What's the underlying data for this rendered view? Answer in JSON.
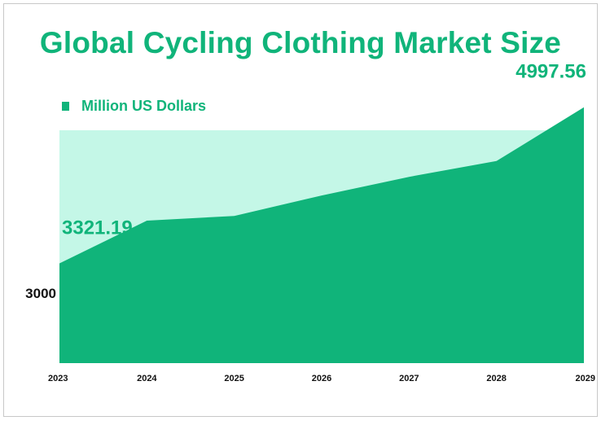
{
  "chart_data": {
    "type": "area",
    "title": "Global Cycling Clothing Market Size",
    "series": [
      {
        "name": "Million US Dollars",
        "values": [
          3321.19,
          3780,
          3830,
          4050,
          4250,
          4420,
          4997.56
        ]
      }
    ],
    "categories": [
      "2023",
      "2024",
      "2025",
      "2026",
      "2027",
      "2028",
      "2029"
    ],
    "y_ticks": [
      "3000"
    ],
    "data_labels": [
      {
        "category": "2023",
        "text": "3321.19"
      },
      {
        "category": "2029",
        "text": "4997.56"
      }
    ],
    "ylim": [
      2250,
      4750
    ],
    "legend_position": "top-left",
    "grid": false,
    "colors": {
      "area": "#10b47a",
      "plot_background": "#c4f7e7",
      "title": "#10b47a",
      "text": "#111111"
    }
  }
}
